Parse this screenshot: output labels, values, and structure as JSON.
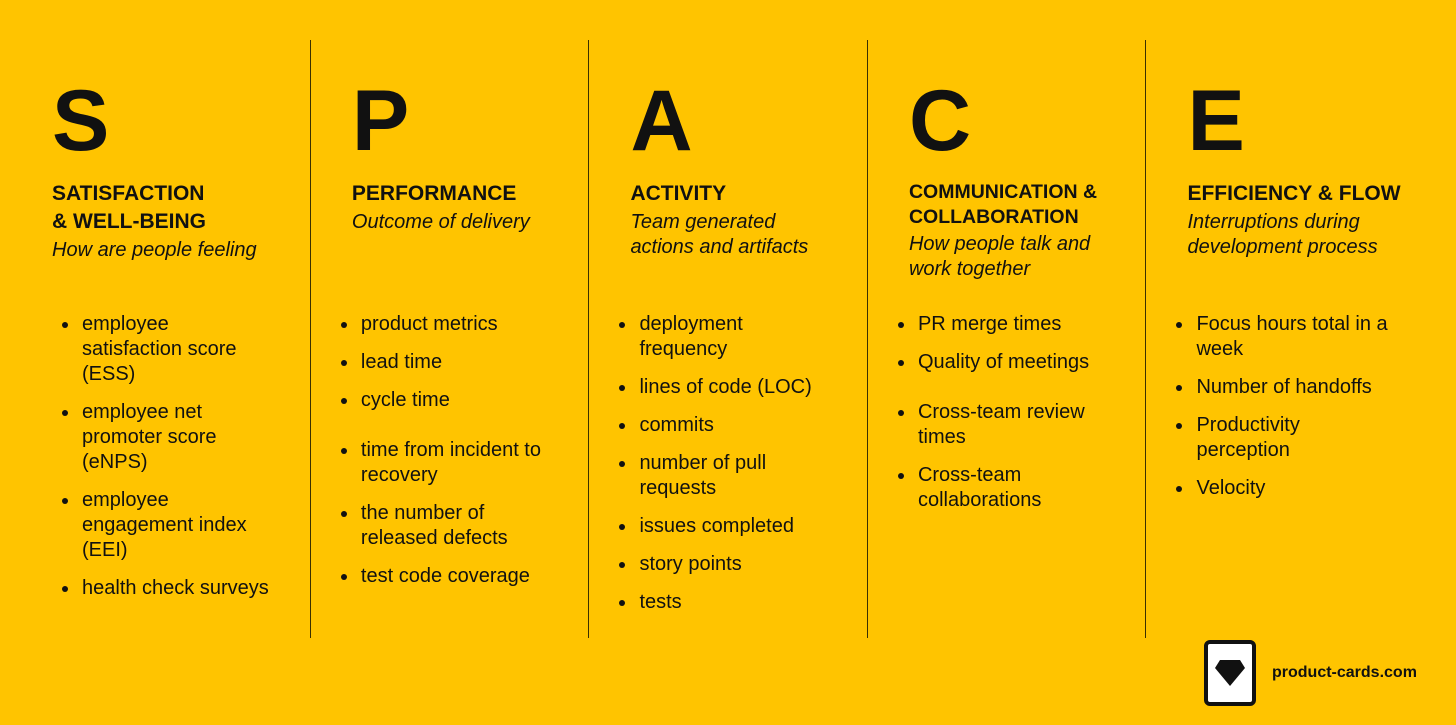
{
  "columns": [
    {
      "letter": "S",
      "title": "SATISFACTION\n& WELL-BEING",
      "subtitle": "How are people feeling",
      "items": [
        "employee\nsatisfaction score\n(ESS)",
        "employee net\npromoter score\n(eNPS)",
        "employee\nengagement index\n(EEI)",
        "health check surveys"
      ]
    },
    {
      "letter": "P",
      "title": "PERFORMANCE",
      "subtitle": "Outcome of delivery",
      "items": [
        "product metrics",
        "lead time",
        "cycle time",
        "time from incident to\nrecovery",
        "the number of\nreleased defects",
        "test code coverage"
      ]
    },
    {
      "letter": "A",
      "title": "ACTIVITY",
      "subtitle": "Team generated\nactions and artifacts",
      "items": [
        "deployment\nfrequency",
        "lines of code (LOC)",
        "commits",
        "number of pull\nrequests",
        "issues completed",
        "story points",
        "tests"
      ]
    },
    {
      "letter": "C",
      "title": "COMMUNICATION &\nCOLLABORATION",
      "subtitle": "How people talk and\nwork together",
      "items": [
        "PR merge times",
        "Quality of meetings",
        "Cross-team review\ntimes",
        "Cross-team\ncollaborations"
      ]
    },
    {
      "letter": "E",
      "title": "EFFICIENCY & FLOW",
      "subtitle": "Interruptions during\ndevelopment process",
      "items": [
        "Focus hours total in a\nweek",
        "Number of handoffs",
        "Productivity\nperception",
        "Velocity"
      ]
    }
  ],
  "brand": {
    "name": "product-cards.com",
    "icon": "diamond-card-icon"
  },
  "colors": {
    "background": "#FFC400",
    "text": "#111111"
  }
}
